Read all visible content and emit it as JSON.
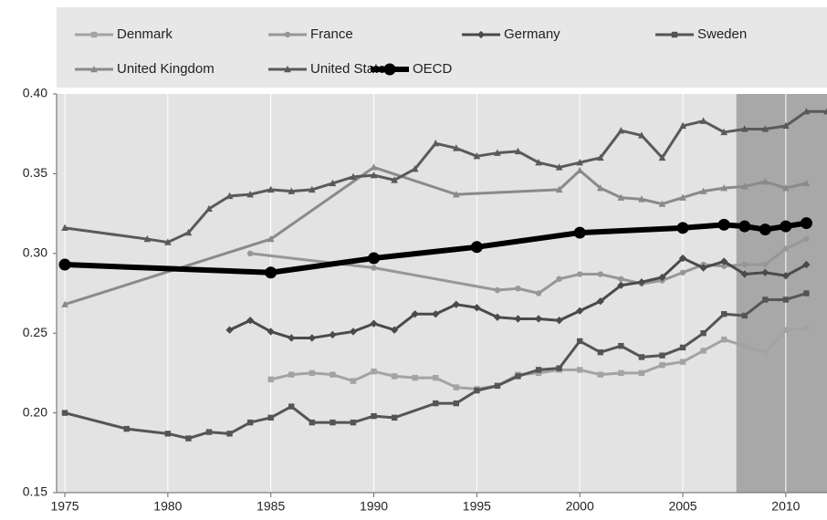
{
  "chart_data": {
    "type": "line",
    "xlim": [
      1974.6,
      2012
    ],
    "xticks": [
      1975,
      1980,
      1985,
      1990,
      1995,
      2000,
      2005,
      2010
    ],
    "ylim": [
      0.15,
      0.4
    ],
    "yticks": [
      {
        "value": 0.15,
        "label": "0.15"
      },
      {
        "value": 0.2,
        "label": "0.20"
      },
      {
        "value": 0.25,
        "label": "0.25"
      },
      {
        "value": 0.3,
        "label": "0.30"
      },
      {
        "value": 0.35,
        "label": "0.35"
      },
      {
        "value": 0.4,
        "label": "0.40"
      }
    ],
    "grid": true,
    "highlight_xrange": [
      2007.6,
      2012
    ],
    "legend": "top",
    "series": [
      {
        "name": "Denmark",
        "color": "#a3a3a3",
        "marker": "square",
        "width": 2,
        "x": [
          1985,
          1986,
          1987,
          1988,
          1989,
          1990,
          1991,
          1992,
          1993,
          1994,
          1995,
          1996,
          1997,
          1998,
          1999,
          2000,
          2001,
          2002,
          2003,
          2004,
          2005,
          2006,
          2007,
          2008,
          2009,
          2010,
          2011
        ],
        "values": [
          0.221,
          0.224,
          0.225,
          0.224,
          0.22,
          0.226,
          0.223,
          0.222,
          0.222,
          0.216,
          0.215,
          0.217,
          0.224,
          0.225,
          0.227,
          0.227,
          0.224,
          0.225,
          0.225,
          0.23,
          0.232,
          0.239,
          0.246,
          0.242,
          0.238,
          0.252,
          0.253
        ]
      },
      {
        "name": "France",
        "color": "#979797",
        "marker": "circle",
        "width": 2,
        "x": [
          1984,
          1990,
          1996,
          1997,
          1998,
          1999,
          2000,
          2001,
          2002,
          2003,
          2004,
          2005,
          2006,
          2007,
          2008,
          2009,
          2010,
          2011
        ],
        "values": [
          0.3,
          0.291,
          0.277,
          0.278,
          0.275,
          0.284,
          0.287,
          0.287,
          0.284,
          0.281,
          0.283,
          0.288,
          0.293,
          0.292,
          0.293,
          0.293,
          0.303,
          0.309
        ]
      },
      {
        "name": "Germany",
        "color": "#4a4a4a",
        "marker": "diamond",
        "width": 2,
        "x": [
          1983,
          1984,
          1985,
          1986,
          1987,
          1988,
          1989,
          1990,
          1991,
          1992,
          1993,
          1994,
          1995,
          1996,
          1997,
          1998,
          1999,
          2000,
          2001,
          2002,
          2003,
          2004,
          2005,
          2006,
          2007,
          2008,
          2009,
          2010,
          2011
        ],
        "values": [
          0.252,
          0.258,
          0.251,
          0.247,
          0.247,
          0.249,
          0.251,
          0.256,
          0.252,
          0.262,
          0.262,
          0.268,
          0.266,
          0.26,
          0.259,
          0.259,
          0.258,
          0.264,
          0.27,
          0.28,
          0.282,
          0.285,
          0.297,
          0.291,
          0.295,
          0.287,
          0.288,
          0.286,
          0.293
        ]
      },
      {
        "name": "Sweden",
        "color": "#555555",
        "marker": "square",
        "width": 2,
        "x": [
          1975,
          1978,
          1980,
          1981,
          1982,
          1983,
          1984,
          1985,
          1986,
          1987,
          1988,
          1989,
          1990,
          1991,
          1993,
          1994,
          1995,
          1996,
          1997,
          1998,
          1999,
          2000,
          2001,
          2002,
          2003,
          2004,
          2005,
          2006,
          2007,
          2008,
          2009,
          2010,
          2011
        ],
        "values": [
          0.2,
          0.19,
          0.187,
          0.184,
          0.188,
          0.187,
          0.194,
          0.197,
          0.204,
          0.194,
          0.194,
          0.194,
          0.198,
          0.197,
          0.206,
          0.206,
          0.214,
          0.217,
          0.223,
          0.227,
          0.228,
          0.245,
          0.238,
          0.242,
          0.235,
          0.236,
          0.241,
          0.25,
          0.262,
          0.261,
          0.271,
          0.271,
          0.275
        ]
      },
      {
        "name": "United Kingdom",
        "color": "#8a8a8a",
        "marker": "triangle",
        "width": 2,
        "x": [
          1975,
          1985,
          1990,
          1994,
          1999,
          2000,
          2001,
          2002,
          2003,
          2004,
          2005,
          2006,
          2007,
          2008,
          2009,
          2010,
          2011
        ],
        "values": [
          0.268,
          0.309,
          0.354,
          0.337,
          0.34,
          0.352,
          0.341,
          0.335,
          0.334,
          0.331,
          0.335,
          0.339,
          0.341,
          0.342,
          0.345,
          0.341,
          0.344
        ]
      },
      {
        "name": "United States",
        "color": "#5a5a5a",
        "marker": "triangle",
        "width": 2,
        "x": [
          1975,
          1979,
          1980,
          1981,
          1982,
          1983,
          1984,
          1985,
          1986,
          1987,
          1988,
          1989,
          1990,
          1991,
          1992,
          1993,
          1994,
          1995,
          1996,
          1997,
          1998,
          1999,
          2000,
          2001,
          2002,
          2003,
          2004,
          2005,
          2006,
          2007,
          2008,
          2009,
          2010,
          2011,
          2012
        ],
        "values": [
          0.316,
          0.309,
          0.307,
          0.313,
          0.328,
          0.336,
          0.337,
          0.34,
          0.339,
          0.34,
          0.344,
          0.348,
          0.349,
          0.346,
          0.353,
          0.369,
          0.366,
          0.361,
          0.363,
          0.364,
          0.357,
          0.354,
          0.357,
          0.36,
          0.377,
          0.374,
          0.36,
          0.38,
          0.383,
          0.376,
          0.378,
          0.378,
          0.38,
          0.389,
          0.389
        ]
      },
      {
        "name": "OECD",
        "color": "#000000",
        "marker": "circle",
        "width": 5,
        "x": [
          1975,
          1985,
          1990,
          1995,
          2000,
          2005,
          2007,
          2008,
          2009,
          2010,
          2011
        ],
        "values": [
          0.293,
          0.288,
          0.297,
          0.304,
          0.313,
          0.316,
          0.318,
          0.317,
          0.315,
          0.317,
          0.319
        ]
      }
    ]
  }
}
